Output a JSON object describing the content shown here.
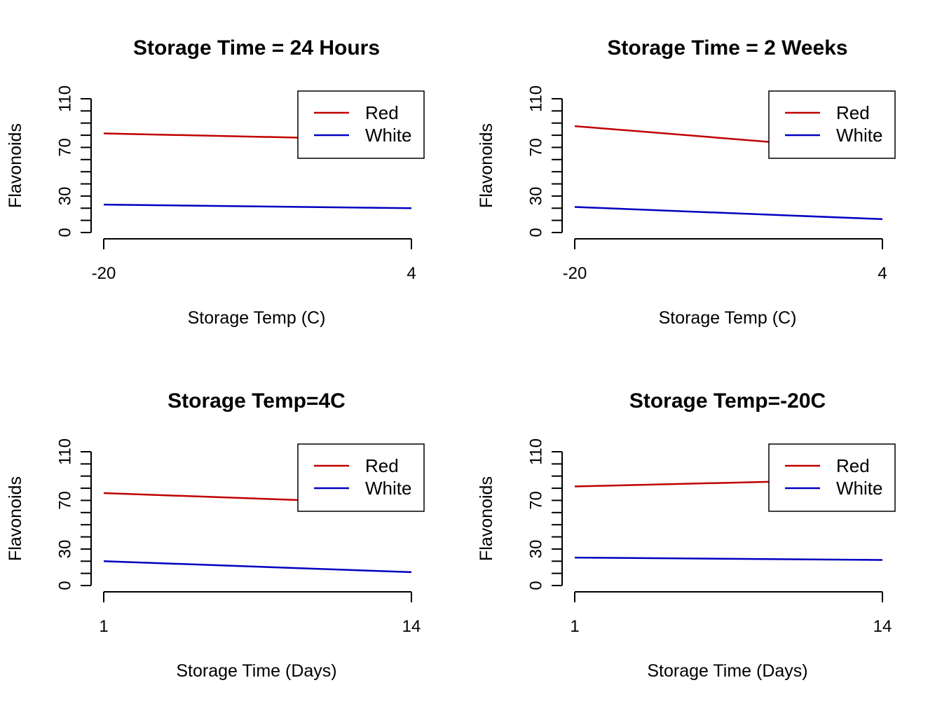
{
  "colors": {
    "red_series": "#C00000",
    "white_series": "#0000C0",
    "axis": "#000000",
    "background": "#FFFFFF"
  },
  "chart_data": [
    {
      "type": "line",
      "title": "Storage Time = 24 Hours",
      "xlabel": "Storage Temp (C)",
      "ylabel": "Flavonoids",
      "x_tick_labels": [
        "-20",
        "4"
      ],
      "y_ticks": [
        0,
        10,
        20,
        30,
        40,
        50,
        60,
        70,
        80,
        90,
        100,
        110
      ],
      "y_tick_labels": [
        "0",
        "30",
        "70",
        "110"
      ],
      "ylim": [
        0,
        110
      ],
      "legend_position": "top-right",
      "grid": false,
      "series": [
        {
          "name": "Red",
          "color": "#C00000",
          "values": [
            81.5,
            76.0
          ]
        },
        {
          "name": "White",
          "color": "#0000C0",
          "values": [
            23.0,
            20.0
          ]
        }
      ]
    },
    {
      "type": "line",
      "title": "Storage Time = 2 Weeks",
      "xlabel": "Storage Temp (C)",
      "ylabel": "Flavonoids",
      "x_tick_labels": [
        "-20",
        "4"
      ],
      "y_ticks": [
        0,
        10,
        20,
        30,
        40,
        50,
        60,
        70,
        80,
        90,
        100,
        110
      ],
      "y_tick_labels": [
        "0",
        "30",
        "70",
        "110"
      ],
      "ylim": [
        0,
        110
      ],
      "legend_position": "top-right",
      "grid": false,
      "series": [
        {
          "name": "Red",
          "color": "#C00000",
          "values": [
            87.5,
            67.0
          ]
        },
        {
          "name": "White",
          "color": "#0000C0",
          "values": [
            21.0,
            11.0
          ]
        }
      ]
    },
    {
      "type": "line",
      "title": "Storage Temp=4C",
      "xlabel": "Storage Time (Days)",
      "ylabel": "Flavonoids",
      "x_tick_labels": [
        "1",
        "14"
      ],
      "y_ticks": [
        0,
        10,
        20,
        30,
        40,
        50,
        60,
        70,
        80,
        90,
        100,
        110
      ],
      "y_tick_labels": [
        "0",
        "30",
        "70",
        "110"
      ],
      "ylim": [
        0,
        110
      ],
      "legend_position": "top-right",
      "grid": false,
      "series": [
        {
          "name": "Red",
          "color": "#C00000",
          "values": [
            76.0,
            67.0
          ]
        },
        {
          "name": "White",
          "color": "#0000C0",
          "values": [
            20.0,
            11.0
          ]
        }
      ]
    },
    {
      "type": "line",
      "title": "Storage Temp=-20C",
      "xlabel": "Storage Time (Days)",
      "ylabel": "Flavonoids",
      "x_tick_labels": [
        "1",
        "14"
      ],
      "y_ticks": [
        0,
        10,
        20,
        30,
        40,
        50,
        60,
        70,
        80,
        90,
        100,
        110
      ],
      "y_tick_labels": [
        "0",
        "30",
        "70",
        "110"
      ],
      "ylim": [
        0,
        110
      ],
      "legend_position": "top-right",
      "grid": false,
      "series": [
        {
          "name": "Red",
          "color": "#C00000",
          "values": [
            81.5,
            87.5
          ]
        },
        {
          "name": "White",
          "color": "#0000C0",
          "values": [
            23.0,
            21.0
          ]
        }
      ]
    }
  ]
}
